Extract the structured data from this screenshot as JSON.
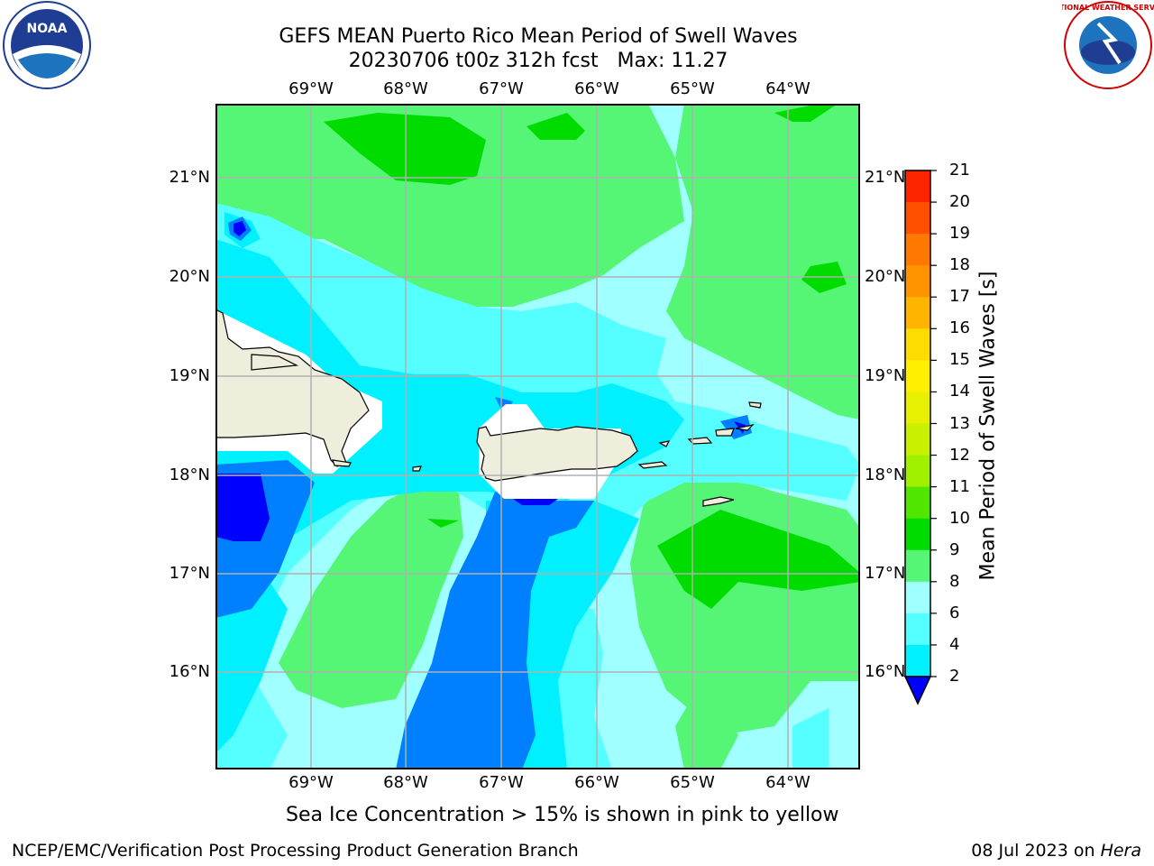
{
  "title": {
    "line1": "GEFS MEAN Puerto Rico Mean Period of Swell Waves",
    "line2": "20230706 t00z 312h fcst   Max: 11.27"
  },
  "map": {
    "lon_labels": [
      "69°W",
      "68°W",
      "67°W",
      "66°W",
      "65°W",
      "64°W"
    ],
    "lat_labels": [
      "21°N",
      "20°N",
      "19°N",
      "18°N",
      "17°N",
      "16°N"
    ]
  },
  "colorbar": {
    "label": "Mean Period of Swell Waves [s]",
    "ticks": [
      "21",
      "20",
      "19",
      "18",
      "17",
      "16",
      "15",
      "14",
      "13",
      "12",
      "11",
      "10",
      "9",
      "8",
      "6",
      "4",
      "2"
    ],
    "colors": [
      "#ff0000",
      "#ff2400",
      "#ff5000",
      "#ff7800",
      "#ff9400",
      "#ffb400",
      "#ffdc00",
      "#fff000",
      "#e6f000",
      "#c8f000",
      "#a0f000",
      "#50e600",
      "#00dc00",
      "#55f575",
      "#a0ffff",
      "#55ffff",
      "#00f0ff",
      "#0080ff",
      "#0000ff"
    ]
  },
  "logos": {
    "noaa": {
      "text": "NOAA"
    },
    "nws": {
      "text": "NATIONAL WEATHER SERVICE"
    }
  },
  "subtitle": "Sea Ice Concentration > 15% is shown in pink to yellow",
  "footer": {
    "left": "NCEP/EMC/Verification Post Processing Product Generation Branch",
    "right_date": "08 Jul 2023 on ",
    "right_host": "Hera"
  }
}
